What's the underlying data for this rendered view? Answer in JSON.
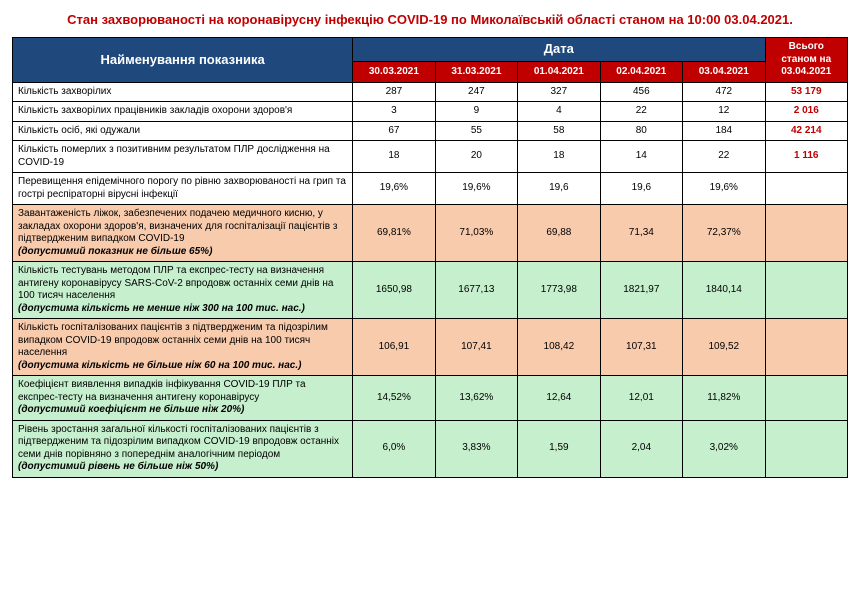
{
  "title": {
    "text": "Стан захворюваності на коронавірусну інфекцію COVID-19 по Миколаївській області станом на 10:00  03.04.2021.",
    "color": "#c00000"
  },
  "colors": {
    "header_blue": "#1f497d",
    "header_red": "#c00000",
    "total_red": "#c00000",
    "row_white": "#ffffff",
    "row_peach": "#f8cbad",
    "row_green": "#c6efce",
    "border": "#000000"
  },
  "headers": {
    "name": "Найменування показника",
    "date": "Дата",
    "dates": [
      "30.03.2021",
      "31.03.2021",
      "01.04.2021",
      "02.04.2021",
      "03.04.2021"
    ],
    "total": "Всього станом на 03.04.2021"
  },
  "rows": [
    {
      "bg": "row_white",
      "label": "Кількість захворілих",
      "threshold": "",
      "vals": [
        "287",
        "247",
        "327",
        "456",
        "472"
      ],
      "total": "53 179"
    },
    {
      "bg": "row_white",
      "label": "Кількість захворілих працівників закладів охорони здоров'я",
      "threshold": "",
      "vals": [
        "3",
        "9",
        "4",
        "22",
        "12"
      ],
      "total": "2 016"
    },
    {
      "bg": "row_white",
      "label": "Кількість осіб, які одужали",
      "threshold": "",
      "vals": [
        "67",
        "55",
        "58",
        "80",
        "184"
      ],
      "total": "42 214"
    },
    {
      "bg": "row_white",
      "label": "Кількість померлих з позитивним результатом ПЛР дослідження на COVID-19",
      "threshold": "",
      "vals": [
        "18",
        "20",
        "18",
        "14",
        "22"
      ],
      "total": "1 116"
    },
    {
      "bg": "row_white",
      "label": "Перевищення епідемічного порогу по рівню захворюваності на грип та гострі респіраторні вірусні інфекції",
      "threshold": "",
      "vals": [
        "19,6%",
        "19,6%",
        "19,6",
        "19,6",
        "19,6%"
      ],
      "total": ""
    },
    {
      "bg": "row_peach",
      "label": "Завантаженість ліжок, забезпечених подачею медичного кисню, у закладах охорони здоров'я, визначених для госпіталізації пацієнтів з підтвердженим випадком COVID-19",
      "threshold": "(допустимий показник не більше 65%)",
      "vals": [
        "69,81%",
        "71,03%",
        "69,88",
        "71,34",
        "72,37%"
      ],
      "total": ""
    },
    {
      "bg": "row_green",
      "label": "Кількість тестувань методом ПЛР та експрес-тесту на визначення антигену коронавірусу SARS-CoV-2 впродовж останніх семи днів на 100 тисяч населення",
      "threshold": "(допустима кількість не менше ніж  300 на 100 тис. нас.)",
      "vals": [
        "1650,98",
        "1677,13",
        "1773,98",
        "1821,97",
        "1840,14"
      ],
      "total": ""
    },
    {
      "bg": "row_peach",
      "label": "Кількість госпіталізованих пацієнтів з підтвердженим та підозрілим випадком COVID-19 впродовж останніх семи днів на 100 тисяч населення",
      "threshold": "(допустима кількість не більше ніж  60 на 100 тис. нас.)",
      "vals": [
        "106,91",
        "107,41",
        "108,42",
        "107,31",
        "109,52"
      ],
      "total": ""
    },
    {
      "bg": "row_green",
      "label": "Коефіцієнт виявлення випадків інфікування COVID-19 ПЛР та експрес-тесту на визначення антигену коронавірусу",
      "threshold": "(допустимий коефіцієнт не більше ніж  20%)",
      "vals": [
        "14,52%",
        "13,62%",
        "12,64",
        "12,01",
        "11,82%"
      ],
      "total": ""
    },
    {
      "bg": "row_green",
      "label": "Рівень зростання загальної кількості госпіталізованих пацієнтів з підтвердженим та підозрілим випадком COVID-19 впродовж останніх семи днів порівняно з попереднім аналогічним періодом",
      "threshold": "(допустимий рівень не більше ніж  50%)",
      "vals": [
        "6,0%",
        "3,83%",
        "1,59",
        "2,04",
        "3,02%"
      ],
      "total": ""
    }
  ],
  "layout": {
    "col_name_width": 330,
    "col_date_width": 80,
    "col_total_width": 80
  }
}
